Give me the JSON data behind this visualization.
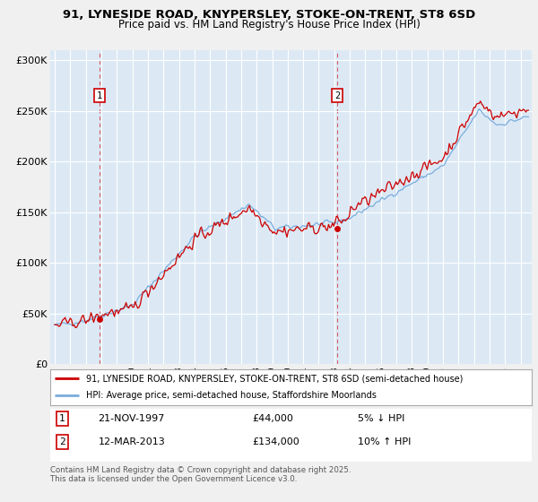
{
  "title_line1": "91, LYNESIDE ROAD, KNYPERSLEY, STOKE-ON-TRENT, ST8 6SD",
  "title_line2": "Price paid vs. HM Land Registry's House Price Index (HPI)",
  "ylabel_ticks": [
    "£0",
    "£50K",
    "£100K",
    "£150K",
    "£200K",
    "£250K",
    "£300K"
  ],
  "ytick_vals": [
    0,
    50000,
    100000,
    150000,
    200000,
    250000,
    300000
  ],
  "ylim": [
    0,
    310000
  ],
  "sale1": {
    "date_num": 1997.88,
    "price": 44000,
    "label": "1"
  },
  "sale2": {
    "date_num": 2013.19,
    "price": 134000,
    "label": "2"
  },
  "legend_line1": "91, LYNESIDE ROAD, KNYPERSLEY, STOKE-ON-TRENT, ST8 6SD (semi-detached house)",
  "legend_line2": "HPI: Average price, semi-detached house, Staffordshire Moorlands",
  "note1_label": "1",
  "note1_date": "21-NOV-1997",
  "note1_price": "£44,000",
  "note1_hpi": "5% ↓ HPI",
  "note2_label": "2",
  "note2_date": "12-MAR-2013",
  "note2_price": "£134,000",
  "note2_hpi": "10% ↑ HPI",
  "footer": "Contains HM Land Registry data © Crown copyright and database right 2025.\nThis data is licensed under the Open Government Licence v3.0.",
  "line_color_red": "#cc0000",
  "line_color_blue": "#7aaddc",
  "plot_bg_color": "#dce9f5",
  "grid_color": "#ffffff",
  "fig_bg_color": "#f0f0f0"
}
